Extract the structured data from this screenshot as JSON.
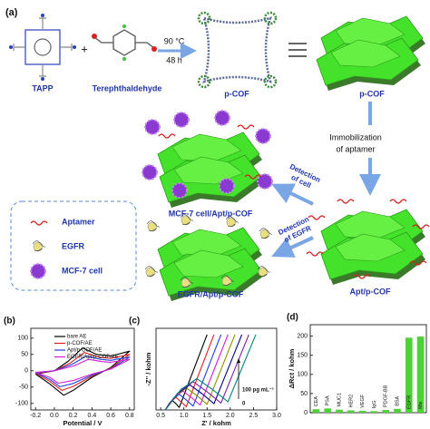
{
  "panel_a": {
    "label": "(a)",
    "tapp": "TAPP",
    "plus": "+",
    "aldehyde": "Terephthaldehyde",
    "temperature": "90 °C",
    "time": "48 h",
    "pcof_framework": "p-COF",
    "pcof_stack": "p-COF",
    "immobilization": [
      "Immobilization",
      "of aptamer"
    ],
    "apt_pcof": "Apt/p-COF",
    "detection_cell": [
      "Detection",
      "of cell"
    ],
    "mcf7_complex": "MCF-7 cell/Apt/p-COF",
    "detection_egfr": [
      "Detection",
      "of EGFR"
    ],
    "egfr_complex": "EGFR/Apt/p-COF",
    "legend": [
      "Aptamer",
      "EGFR",
      "MCF-7 cell"
    ]
  },
  "chart_data": [
    {
      "type": "line",
      "label": "(b)",
      "xlabel": "Potential / V",
      "legend": true,
      "xlim": [
        -0.25,
        0.85
      ],
      "xticks": [
        -0.2,
        {
          "value": 0,
          "label": "0.0"
        },
        0.2,
        0.4,
        0.6,
        0.8
      ],
      "ylim": [
        -120,
        130
      ],
      "yticks": [
        -100,
        -50,
        0,
        50,
        100
      ],
      "series": [
        {
          "name": "bare AE",
          "color": "#000000",
          "x": [
            -0.2,
            0.0,
            0.15,
            0.3,
            0.45,
            0.6,
            0.8,
            0.6,
            0.4,
            0.2,
            0.1,
            -0.05,
            -0.2
          ],
          "values": [
            -10,
            0,
            30,
            70,
            50,
            45,
            60,
            10,
            -20,
            -60,
            -75,
            -40,
            -10
          ]
        },
        {
          "name": "p-COF/AE",
          "color": "#e02020",
          "x": [
            -0.2,
            0.0,
            0.17,
            0.32,
            0.47,
            0.6,
            0.8,
            0.6,
            0.4,
            0.2,
            0.08,
            -0.05,
            -0.2
          ],
          "values": [
            -8,
            0,
            24,
            56,
            42,
            38,
            50,
            8,
            -16,
            -48,
            -60,
            -32,
            -8
          ]
        },
        {
          "name": "Apt/p-COF/AE",
          "color": "#2040e0",
          "x": [
            -0.2,
            0.0,
            0.19,
            0.34,
            0.49,
            0.6,
            0.8,
            0.6,
            0.4,
            0.2,
            0.06,
            -0.05,
            -0.2
          ],
          "values": [
            -6,
            0,
            20,
            45,
            35,
            32,
            42,
            6,
            -13,
            -39,
            -49,
            -26,
            -6
          ]
        },
        {
          "name": "EGFR/Apt/p-COF/AE",
          "color": "#d020d0",
          "x": [
            -0.2,
            0.0,
            0.21,
            0.36,
            0.51,
            0.6,
            0.8,
            0.6,
            0.4,
            0.2,
            0.04,
            -0.05,
            -0.2
          ],
          "values": [
            -5,
            0,
            15,
            35,
            28,
            26,
            35,
            5,
            -10,
            -30,
            -38,
            -20,
            -5
          ]
        }
      ]
    },
    {
      "type": "line",
      "label": "(c)",
      "xlabel": "Z' / kohm",
      "ylabel": "-Z'' / kohm",
      "xlim": [
        0.4,
        3.0
      ],
      "xticks": [
        0.5,
        {
          "value": 1,
          "label": "1.0"
        },
        1.5,
        {
          "value": 2,
          "label": "2.0"
        },
        2.5,
        {
          "value": 3,
          "label": "3.0"
        }
      ],
      "ylim": [
        0,
        1.3
      ],
      "annotations": [
        "100 pg mL⁻¹",
        "0"
      ],
      "series": [
        {
          "color": "#000000",
          "x": [
            0.6,
            0.68,
            0.75,
            0.83,
            0.9,
            1.5
          ],
          "values": [
            0,
            0.1,
            0.15,
            0.1,
            0.04,
            1.2
          ]
        },
        {
          "color": "#e02020",
          "x": [
            0.6,
            0.71,
            0.83,
            0.94,
            1.05,
            1.65
          ],
          "values": [
            0,
            0.13,
            0.2,
            0.13,
            0.05,
            1.2
          ]
        },
        {
          "color": "#2040e0",
          "x": [
            0.6,
            0.75,
            0.9,
            1.05,
            1.2,
            1.8
          ],
          "values": [
            0,
            0.16,
            0.25,
            0.16,
            0.06,
            1.2
          ]
        },
        {
          "color": "#d020d0",
          "x": [
            0.6,
            0.79,
            0.98,
            1.16,
            1.35,
            1.95
          ],
          "values": [
            0,
            0.2,
            0.3,
            0.2,
            0.08,
            1.2
          ]
        },
        {
          "color": "#909000",
          "x": [
            0.6,
            0.83,
            1.05,
            1.28,
            1.5,
            2.1
          ],
          "values": [
            0,
            0.23,
            0.35,
            0.23,
            0.09,
            1.2
          ]
        },
        {
          "color": "#000080",
          "x": [
            0.6,
            0.86,
            1.13,
            1.39,
            1.65,
            2.25
          ],
          "values": [
            0,
            0.26,
            0.4,
            0.26,
            0.1,
            1.2
          ]
        },
        {
          "color": "#8020a0",
          "x": [
            0.6,
            0.9,
            1.2,
            1.5,
            1.8,
            2.4
          ],
          "values": [
            0,
            0.29,
            0.45,
            0.29,
            0.11,
            1.2
          ]
        },
        {
          "color": "#008080",
          "x": [
            0.6,
            0.94,
            1.28,
            1.61,
            1.95,
            2.55
          ],
          "values": [
            0,
            0.33,
            0.5,
            0.33,
            0.13,
            1.2
          ]
        }
      ]
    },
    {
      "type": "bar",
      "label": "(d)",
      "ylabel": "ΔRct / kohm",
      "color": "#4fd13a",
      "categories": [
        "CEA",
        "PSA",
        "MUC1",
        "HER2",
        "VEGF",
        "IgG",
        "PDGF-BB",
        "BSA",
        "EGFR",
        "Mix"
      ],
      "values": [
        9,
        11,
        8,
        6,
        5,
        4,
        7,
        10,
        196,
        199
      ],
      "ylim": [
        0,
        230
      ],
      "yticks": [
        0,
        50,
        100,
        150,
        200
      ]
    }
  ]
}
